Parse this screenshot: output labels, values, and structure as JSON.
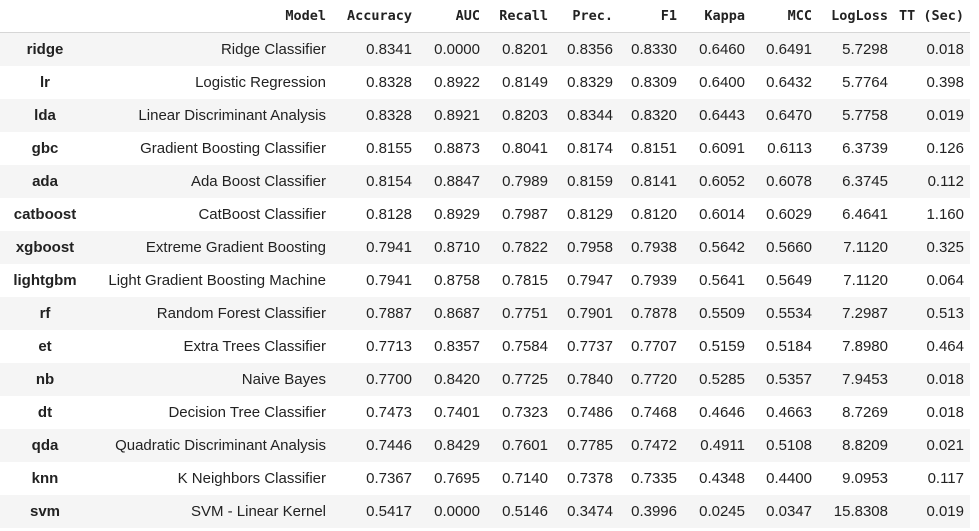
{
  "table": {
    "columns": [
      "",
      "Model",
      "Accuracy",
      "AUC",
      "Recall",
      "Prec.",
      "F1",
      "Kappa",
      "MCC",
      "LogLoss",
      "TT (Sec)"
    ],
    "rows": [
      [
        "ridge",
        "Ridge Classifier",
        "0.8341",
        "0.0000",
        "0.8201",
        "0.8356",
        "0.8330",
        "0.6460",
        "0.6491",
        "5.7298",
        "0.018"
      ],
      [
        "lr",
        "Logistic Regression",
        "0.8328",
        "0.8922",
        "0.8149",
        "0.8329",
        "0.8309",
        "0.6400",
        "0.6432",
        "5.7764",
        "0.398"
      ],
      [
        "lda",
        "Linear Discriminant Analysis",
        "0.8328",
        "0.8921",
        "0.8203",
        "0.8344",
        "0.8320",
        "0.6443",
        "0.6470",
        "5.7758",
        "0.019"
      ],
      [
        "gbc",
        "Gradient Boosting Classifier",
        "0.8155",
        "0.8873",
        "0.8041",
        "0.8174",
        "0.8151",
        "0.6091",
        "0.6113",
        "6.3739",
        "0.126"
      ],
      [
        "ada",
        "Ada Boost Classifier",
        "0.8154",
        "0.8847",
        "0.7989",
        "0.8159",
        "0.8141",
        "0.6052",
        "0.6078",
        "6.3745",
        "0.112"
      ],
      [
        "catboost",
        "CatBoost Classifier",
        "0.8128",
        "0.8929",
        "0.7987",
        "0.8129",
        "0.8120",
        "0.6014",
        "0.6029",
        "6.4641",
        "1.160"
      ],
      [
        "xgboost",
        "Extreme Gradient Boosting",
        "0.7941",
        "0.8710",
        "0.7822",
        "0.7958",
        "0.7938",
        "0.5642",
        "0.5660",
        "7.1120",
        "0.325"
      ],
      [
        "lightgbm",
        "Light Gradient Boosting Machine",
        "0.7941",
        "0.8758",
        "0.7815",
        "0.7947",
        "0.7939",
        "0.5641",
        "0.5649",
        "7.1120",
        "0.064"
      ],
      [
        "rf",
        "Random Forest Classifier",
        "0.7887",
        "0.8687",
        "0.7751",
        "0.7901",
        "0.7878",
        "0.5509",
        "0.5534",
        "7.2987",
        "0.513"
      ],
      [
        "et",
        "Extra Trees Classifier",
        "0.7713",
        "0.8357",
        "0.7584",
        "0.7737",
        "0.7707",
        "0.5159",
        "0.5184",
        "7.8980",
        "0.464"
      ],
      [
        "nb",
        "Naive Bayes",
        "0.7700",
        "0.8420",
        "0.7725",
        "0.7840",
        "0.7720",
        "0.5285",
        "0.5357",
        "7.9453",
        "0.018"
      ],
      [
        "dt",
        "Decision Tree Classifier",
        "0.7473",
        "0.7401",
        "0.7323",
        "0.7486",
        "0.7468",
        "0.4646",
        "0.4663",
        "8.7269",
        "0.018"
      ],
      [
        "qda",
        "Quadratic Discriminant Analysis",
        "0.7446",
        "0.8429",
        "0.7601",
        "0.7785",
        "0.7472",
        "0.4911",
        "0.5108",
        "8.8209",
        "0.021"
      ],
      [
        "knn",
        "K Neighbors Classifier",
        "0.7367",
        "0.7695",
        "0.7140",
        "0.7378",
        "0.7335",
        "0.4348",
        "0.4400",
        "9.0953",
        "0.117"
      ],
      [
        "svm",
        "SVM - Linear Kernel",
        "0.5417",
        "0.0000",
        "0.5146",
        "0.3474",
        "0.3996",
        "0.0245",
        "0.0347",
        "15.8308",
        "0.019"
      ]
    ]
  }
}
